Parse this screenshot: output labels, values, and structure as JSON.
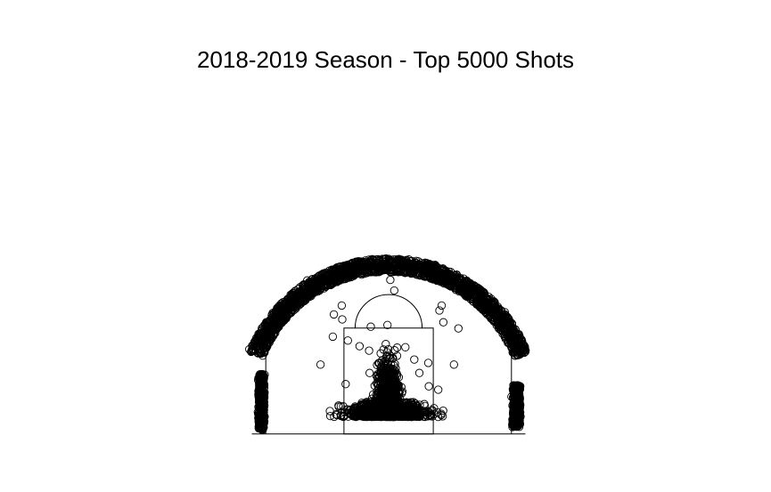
{
  "chart_data": {
    "type": "scatter",
    "title": "2018-2019 Season - Top 5000 Shots",
    "xlabel": "",
    "ylabel": "",
    "xlim": [
      -250,
      250
    ],
    "ylim": [
      -47.5,
      422.5
    ],
    "grid": false,
    "axes_visible": false,
    "marker": "open-circle",
    "n_points": 5000,
    "court": {
      "baseline_y": -47.5,
      "paint": {
        "x": [
          -80,
          80
        ],
        "y": [
          -47.5,
          142.5
        ]
      },
      "free_throw_circle": {
        "center": [
          0,
          142.5
        ],
        "radius": 60,
        "half": "upper"
      },
      "three_point_line": {
        "corner_x": 220,
        "corner_top_y": 92.5,
        "arc_radius": 237.5,
        "hoop": [
          0,
          0
        ]
      }
    },
    "zones": [
      {
        "name": "paint",
        "count": 2050,
        "center": [
          0,
          5
        ],
        "spread": [
          18,
          20
        ]
      },
      {
        "name": "above-break-three",
        "count": 1980,
        "r_range": [
          243,
          268
        ],
        "theta_deg_range": [
          22,
          158
        ]
      },
      {
        "name": "left-corner-three",
        "count": 420,
        "x_range": [
          -232,
          -224
        ],
        "y_range": [
          -40,
          60
        ]
      },
      {
        "name": "right-corner-three",
        "count": 440,
        "x_range": [
          224,
          234
        ],
        "y_range": [
          -35,
          40
        ]
      },
      {
        "name": "mid-range",
        "count": 110,
        "r_range": [
          55,
          210
        ]
      }
    ],
    "sample_points": [
      [
        -122,
        77
      ],
      [
        -100,
        127
      ],
      [
        -98,
        167
      ],
      [
        -84,
        183
      ],
      [
        -83,
        158
      ],
      [
        -34,
        62
      ],
      [
        -32,
        145
      ],
      [
        3,
        243
      ],
      [
        10,
        210
      ],
      [
        -2,
        148
      ],
      [
        117,
        77
      ],
      [
        98,
        153
      ],
      [
        95,
        183
      ],
      [
        91,
        174
      ],
      [
        125,
        142
      ],
      [
        -77,
        42
      ],
      [
        -73,
        120
      ],
      [
        -52,
        110
      ],
      [
        -35,
        102
      ],
      [
        30,
        108
      ],
      [
        46,
        86
      ],
      [
        55,
        62
      ],
      [
        71,
        80
      ],
      [
        72,
        38
      ],
      [
        89,
        32
      ],
      [
        3,
        229
      ]
    ]
  }
}
